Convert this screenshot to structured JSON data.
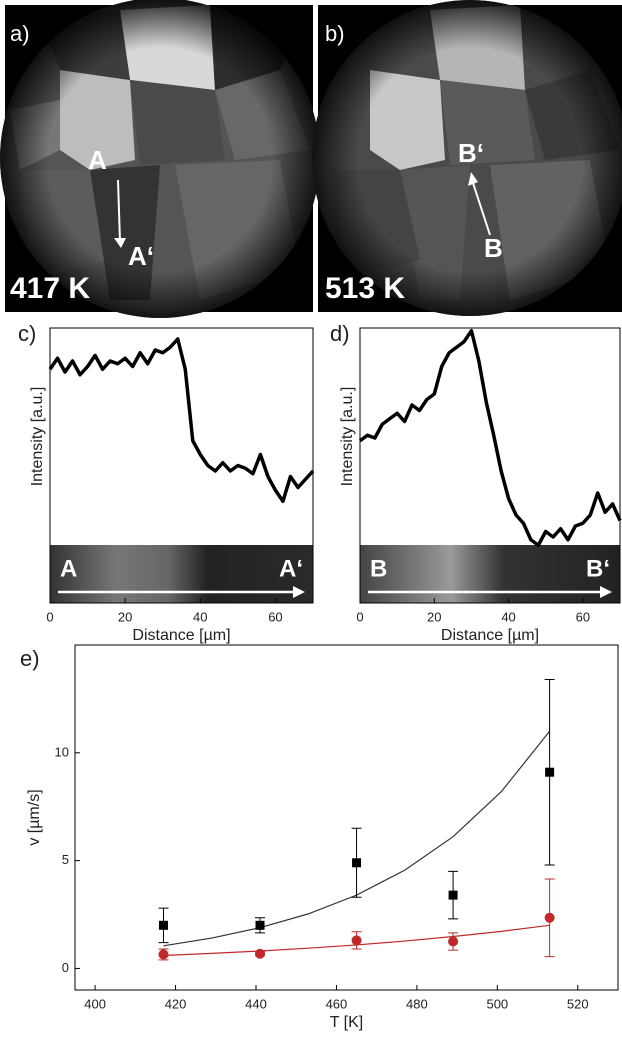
{
  "images": [
    {
      "label": "a)",
      "temperature": "417 K",
      "annotations": [
        "A",
        "A‘"
      ]
    },
    {
      "label": "b)",
      "temperature": "513 K",
      "annotations": [
        "B‘",
        "B"
      ]
    }
  ],
  "chart_data": [
    {
      "type": "line",
      "title": "c)",
      "x_label": "Distance [µm]",
      "y_label": "Intensity [a.u.]",
      "annotations": [
        "A",
        "A‘"
      ],
      "x": [
        0,
        2,
        4,
        6,
        8,
        10,
        12,
        14,
        16,
        18,
        20,
        22,
        24,
        26,
        28,
        30,
        32,
        34,
        36,
        38,
        40,
        42,
        44,
        46,
        48,
        50,
        52,
        54,
        56,
        58,
        60,
        62,
        64,
        66,
        68,
        70
      ],
      "values": [
        8.5,
        8.9,
        8.4,
        8.8,
        8.3,
        8.6,
        9.0,
        8.5,
        8.8,
        8.7,
        8.9,
        8.6,
        9.1,
        8.7,
        9.2,
        9.1,
        9.3,
        9.6,
        8.5,
        5.9,
        5.4,
        5.0,
        4.8,
        5.1,
        4.8,
        5.0,
        4.9,
        4.7,
        5.4,
        4.6,
        4.1,
        3.7,
        4.6,
        4.2,
        4.5,
        4.8
      ],
      "color": "#000000",
      "xlim": [
        0,
        70
      ],
      "ylim": [
        0,
        10
      ],
      "xticks": [
        0,
        20,
        40,
        60
      ]
    },
    {
      "type": "line",
      "title": "d)",
      "x_label": "Distance [µm]",
      "y_label": "Intensity [a.u.]",
      "annotations": [
        "B",
        "B‘"
      ],
      "x": [
        0,
        2,
        4,
        6,
        8,
        10,
        12,
        14,
        16,
        18,
        20,
        22,
        24,
        26,
        28,
        30,
        32,
        34,
        36,
        38,
        40,
        42,
        44,
        46,
        48,
        50,
        52,
        54,
        56,
        58,
        60,
        62,
        64,
        66,
        68,
        70
      ],
      "values": [
        5.9,
        6.1,
        6.0,
        6.5,
        6.7,
        6.9,
        6.6,
        7.2,
        7.0,
        7.4,
        7.6,
        8.6,
        9.1,
        9.3,
        9.5,
        9.9,
        8.8,
        7.3,
        6.1,
        4.8,
        3.8,
        3.2,
        2.9,
        2.3,
        2.1,
        2.6,
        2.4,
        2.7,
        2.3,
        2.8,
        2.9,
        3.2,
        4.0,
        3.3,
        3.6,
        3.0
      ],
      "color": "#000000",
      "xlim": [
        0,
        70
      ],
      "ylim": [
        0,
        10
      ],
      "xticks": [
        0,
        20,
        40,
        60
      ]
    },
    {
      "type": "scatter",
      "title": "e)",
      "x_label": "T [K]",
      "y_label": "v [µm/s]",
      "xlim": [
        395,
        530
      ],
      "ylim": [
        -1,
        15
      ],
      "xticks": [
        400,
        420,
        440,
        460,
        480,
        500,
        520
      ],
      "yticks": [
        0,
        5,
        10
      ],
      "series": [
        {
          "style": "line",
          "color": "#333333",
          "x": [
            417,
            429,
            441,
            453,
            465,
            477,
            489,
            501,
            513
          ],
          "values": [
            1.05,
            1.41,
            1.89,
            2.53,
            3.4,
            4.56,
            6.11,
            8.2,
            11.0
          ]
        },
        {
          "style": "line",
          "color": "#c0282b",
          "x": [
            417,
            429,
            441,
            453,
            465,
            477,
            489,
            501,
            513
          ],
          "values": [
            0.6,
            0.7,
            0.81,
            0.94,
            1.09,
            1.27,
            1.48,
            1.72,
            2.0
          ]
        },
        {
          "style": "points",
          "marker": "square",
          "color": "#000000",
          "x": [
            417,
            441,
            465,
            489,
            513
          ],
          "values": [
            2.0,
            2.0,
            4.9,
            3.4,
            9.1
          ],
          "errors": [
            0.8,
            0.35,
            1.6,
            1.1,
            4.3
          ]
        },
        {
          "style": "points",
          "marker": "circle",
          "color": "#c0282b",
          "x": [
            417,
            441,
            465,
            489,
            513
          ],
          "values": [
            0.65,
            0.68,
            1.3,
            1.25,
            2.35
          ],
          "errors": [
            0.25,
            0.1,
            0.4,
            0.4,
            1.8
          ]
        }
      ]
    }
  ]
}
